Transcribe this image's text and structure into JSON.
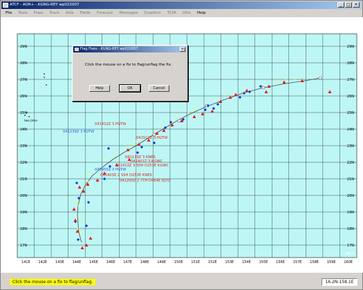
{
  "window": {
    "title": "ATCF - AOR+ - KGNG-REY wp022007"
  },
  "menu": [
    "File",
    "Tools",
    "Fixes",
    "Track",
    "Aids",
    "Fields",
    "Forecast",
    "Messages",
    "Graphics",
    "TCFA",
    "Utils",
    "Help"
  ],
  "map": {
    "lon_labels": [
      "141E",
      "142E",
      "143E",
      "144E",
      "145E",
      "146E",
      "147E",
      "148E",
      "149E",
      "150E",
      "151E",
      "152E",
      "153E",
      "154E",
      "155E",
      "156E",
      "157E",
      "158E",
      "159E",
      "160E"
    ],
    "lat_labels": [
      "29N",
      "28N",
      "27N",
      "26N",
      "25N",
      "24N",
      "23N",
      "22N",
      "21N",
      "20N",
      "19N",
      "18N",
      "17N"
    ],
    "place_name": "Iwo Jima",
    "watermark": "ATCF",
    "colors": {
      "ocean": "#bdf7f5",
      "grid": "#3a4a4a",
      "fix_red": "#e41919",
      "fix_blue": "#1432e6",
      "fix_yellow": "#ffff3c",
      "track": "#464646"
    },
    "fix_labels": [
      {
        "text": "041412Z 3 PGTW",
        "color": "#dc2020"
      },
      {
        "text": "041239Z 3 PGTW",
        "color": "#2e56e8"
      },
      {
        "text": "041512Z 3 PGTW",
        "color": "#dc2020"
      },
      {
        "text": "041130Z 3 KNES",
        "color": "#dc2020"
      },
      {
        "text": "041401Z 3 KGWC",
        "color": "#dc2020"
      },
      {
        "text": "041413Z 3 SSH D253E KGWC",
        "color": "#dc2020"
      },
      {
        "text": "040955Z 3 PGTW",
        "color": "#2e56e8"
      },
      {
        "text": "041403Z 2 SSH D253E KNES",
        "color": "#dc2020"
      },
      {
        "text": "041200Z 2 7TH D464E RJTD",
        "color": "#dc2020"
      },
      {
        "text": "041512Z 3 KNES D0540 PGTW",
        "color": "#dc2020"
      }
    ]
  },
  "dialog": {
    "title": "Flag Fixes - KGNG-REY wp022007",
    "message": "Click the mouse on a fix to flag/unflag the fix.",
    "buttons": {
      "help": "Help",
      "ok": "OK",
      "cancel": "Cancel"
    }
  },
  "status": {
    "message": "Click the mouse on a fix to flag/unflag.",
    "coords": "16.2N-158.1E"
  }
}
